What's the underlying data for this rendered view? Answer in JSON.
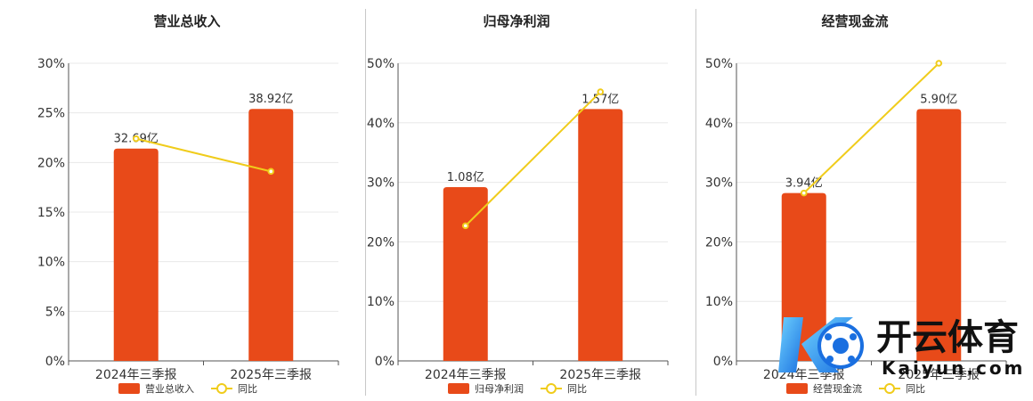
{
  "colors": {
    "bar": "#e84a19",
    "line": "#f0cc1b",
    "axis": "#555555",
    "grid": "#e8e8e8",
    "text": "#333333"
  },
  "legend_labels": {
    "line": "同比"
  },
  "watermark": {
    "text_cn": "开云体育",
    "text_en": "Kaiyun.com"
  },
  "chart_data": [
    {
      "type": "bar",
      "title": "营业总收入",
      "categories": [
        "2024年三季报",
        "2025年三季报"
      ],
      "ylim": [
        0,
        30
      ],
      "yticks": [
        0,
        5,
        10,
        15,
        20,
        25,
        30
      ],
      "ytick_labels": [
        "0%",
        "5%",
        "10%",
        "15%",
        "20%",
        "25%",
        "30%"
      ],
      "bar_series_name": "营业总收入",
      "bar_heights_pct": [
        21.4,
        25.4
      ],
      "bar_labels": [
        "32.69亿",
        "38.92亿"
      ],
      "line_series_name": "同比",
      "line_values_pct": [
        22.4,
        19.1
      ],
      "legend": "bottom-center",
      "grid": true
    },
    {
      "type": "bar",
      "title": "归母净利润",
      "categories": [
        "2024年三季报",
        "2025年三季报"
      ],
      "ylim": [
        0,
        50
      ],
      "yticks": [
        0,
        10,
        20,
        30,
        40,
        50
      ],
      "ytick_labels": [
        "0%",
        "10%",
        "20%",
        "30%",
        "40%",
        "50%"
      ],
      "bar_series_name": "归母净利润",
      "bar_heights_pct": [
        29.2,
        42.3
      ],
      "bar_labels": [
        "1.08亿",
        "1.57亿"
      ],
      "line_series_name": "同比",
      "line_values_pct": [
        22.7,
        45.2
      ],
      "legend": "bottom-center",
      "grid": true
    },
    {
      "type": "bar",
      "title": "经营现金流",
      "categories": [
        "2024年三季报",
        "2025年三季报"
      ],
      "ylim": [
        0,
        50
      ],
      "yticks": [
        0,
        10,
        20,
        30,
        40,
        50
      ],
      "ytick_labels": [
        "0%",
        "10%",
        "20%",
        "30%",
        "40%",
        "50%"
      ],
      "bar_series_name": "经营现金流",
      "bar_heights_pct": [
        28.2,
        42.3
      ],
      "bar_labels": [
        "3.94亿",
        "5.90亿"
      ],
      "line_series_name": "同比",
      "line_values_pct": [
        28.2,
        50.0
      ],
      "legend": "bottom-center",
      "grid": true
    }
  ]
}
